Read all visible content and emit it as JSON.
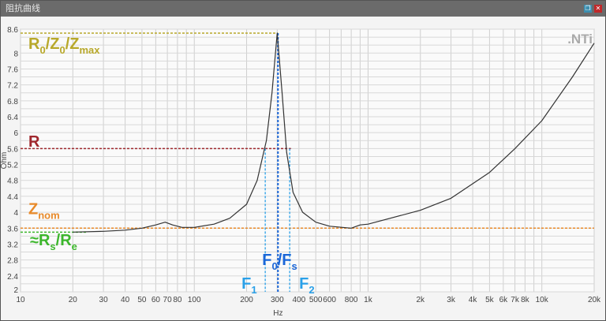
{
  "window": {
    "title": "阻抗曲线",
    "restore_icon": "restore-icon",
    "close_icon": "close-icon"
  },
  "logo": ".NTi",
  "chart_data": {
    "type": "line",
    "xlabel": "Hz",
    "ylabel": "Ohm",
    "xscale": "log",
    "xlim": [
      10,
      20000
    ],
    "ylim": [
      2,
      8.6
    ],
    "grid": true,
    "x_ticks": [
      10,
      20,
      30,
      40,
      50,
      60,
      70,
      80,
      100,
      200,
      300,
      400,
      500,
      600,
      800,
      1000,
      2000,
      3000,
      4000,
      5000,
      6000,
      7000,
      8000,
      10000,
      20000
    ],
    "x_tick_labels": [
      "10",
      "20",
      "30",
      "40",
      "50",
      "60",
      "70",
      "80",
      "100",
      "200",
      "300",
      "400",
      "500",
      "600",
      "800",
      "1k",
      "2k",
      "3k",
      "4k",
      "5k",
      "6k",
      "7k",
      "8k",
      "10k",
      "20k"
    ],
    "y_ticks": [
      2,
      2.4,
      2.8,
      3.2,
      3.6,
      4,
      4.4,
      4.8,
      5.2,
      5.6,
      6,
      6.4,
      6.8,
      7.2,
      7.6,
      8,
      8.6
    ],
    "y_tick_labels": [
      "2",
      "2.4",
      "2.8",
      "3.2",
      "3.6",
      "4",
      "4.4",
      "4.8",
      "5.2",
      "5.6",
      "6",
      "6.4",
      "6.8",
      "7.2",
      "7.6",
      "8",
      "8.6"
    ],
    "series": [
      {
        "color": "#333333",
        "x": [
          20,
          30,
          40,
          50,
          60,
          68,
          75,
          85,
          100,
          130,
          160,
          200,
          230,
          260,
          280,
          300,
          320,
          340,
          370,
          420,
          500,
          600,
          800,
          900,
          1000,
          2000,
          3000,
          5000,
          7000,
          10000,
          15000,
          20000
        ],
        "y": [
          3.5,
          3.52,
          3.55,
          3.6,
          3.68,
          3.75,
          3.68,
          3.62,
          3.62,
          3.7,
          3.85,
          4.2,
          4.8,
          5.8,
          7.0,
          8.5,
          7.0,
          5.5,
          4.5,
          4.0,
          3.75,
          3.65,
          3.6,
          3.68,
          3.7,
          4.05,
          4.35,
          5.0,
          5.6,
          6.3,
          7.4,
          8.25
        ]
      }
    ],
    "annotations": {
      "zmax": {
        "value": 8.5,
        "to_hz": 303,
        "color": "#b8a82a",
        "label": "R",
        "sub0": "0",
        "sep1": "/Z",
        "sub1": "0",
        "sep2": "/Z",
        "sub2": "max"
      },
      "r": {
        "value": 5.6,
        "to_hz": 360,
        "color": "#a0282e",
        "label": "R"
      },
      "znom": {
        "value": 3.6,
        "to_hz": 20000,
        "color": "#e88a2a",
        "label": "Z",
        "sub": "nom"
      },
      "rs": {
        "value": 3.5,
        "to_hz": 24,
        "color": "#3cb62c",
        "label": "≈R",
        "sub0": "s",
        "sep": "/R",
        "sub1": "e"
      },
      "f1": {
        "hz": 256,
        "color": "#2aa0e8",
        "label": "F",
        "sub": "1"
      },
      "f0": {
        "hz": 303,
        "color": "#1a66d8",
        "label": "F",
        "sub0": "0",
        "sep": "/F",
        "sub1": "s"
      },
      "f2": {
        "hz": 354,
        "color": "#2aa0e8",
        "label": "F",
        "sub": "2"
      }
    }
  }
}
